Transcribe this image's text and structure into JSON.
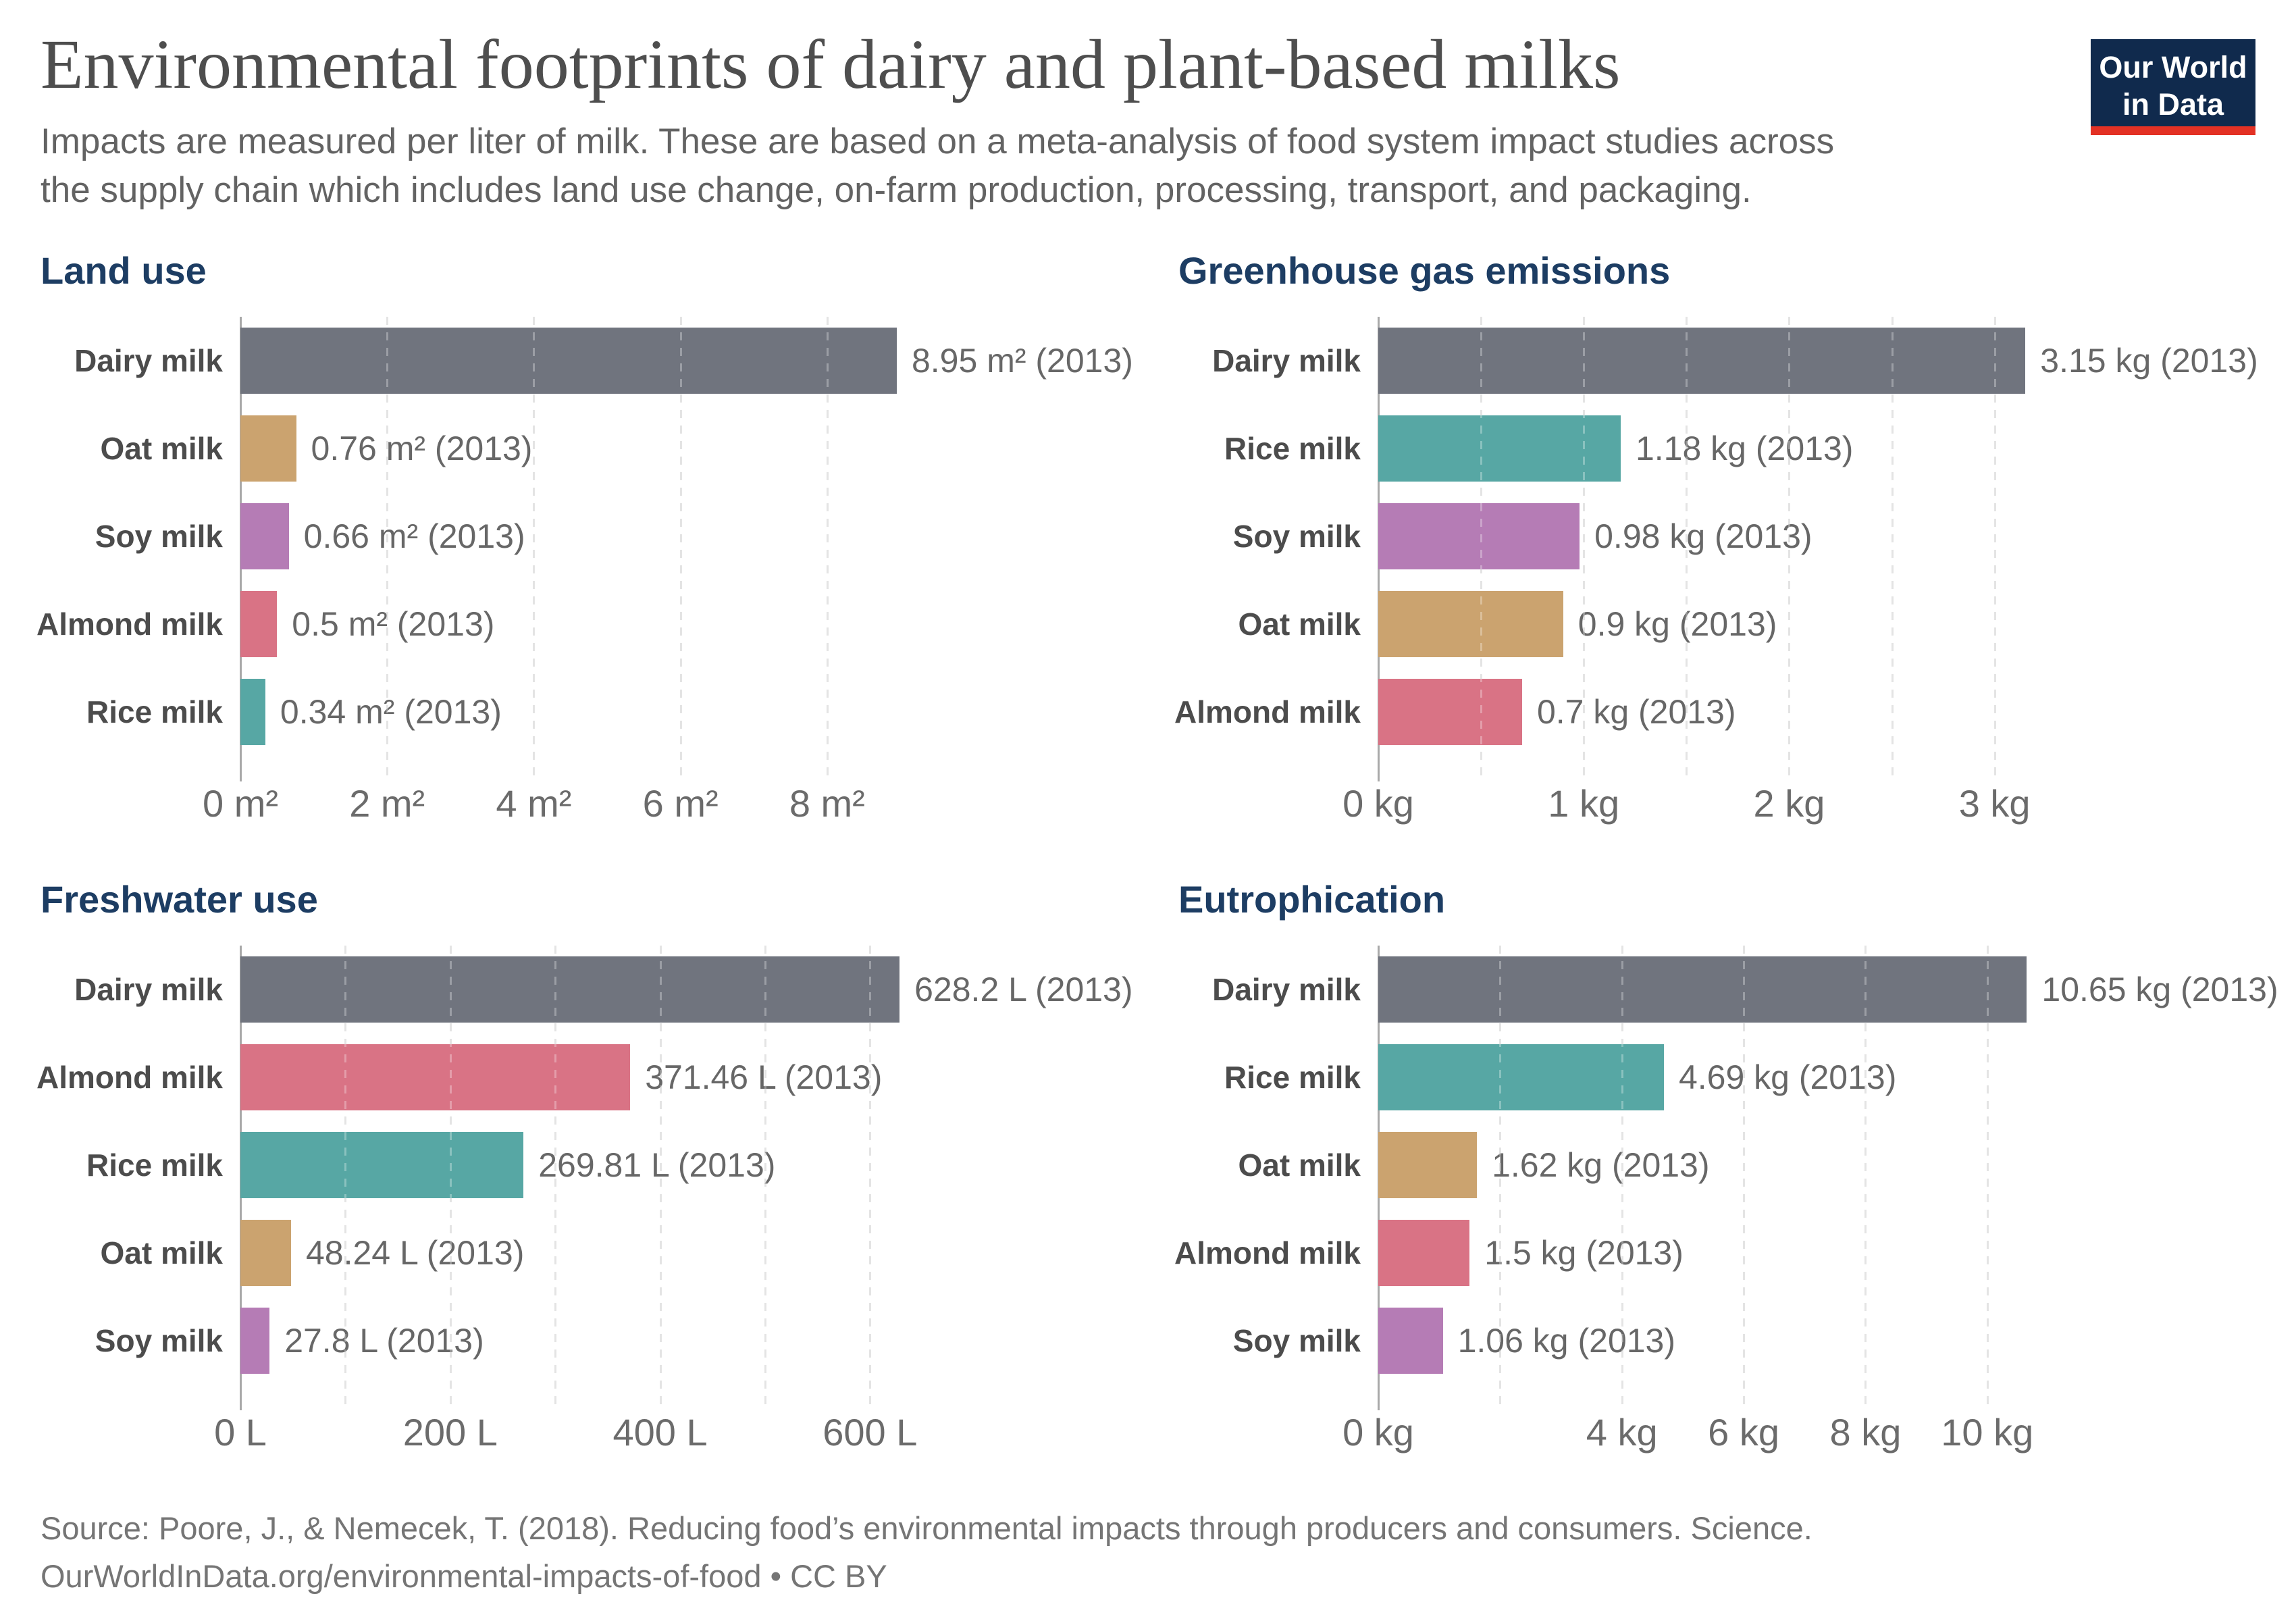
{
  "page": {
    "title": "Environmental footprints of dairy and plant-based milks",
    "subtitle_line1": "Impacts are measured per liter of milk. These are based on a meta-analysis of food system impact studies across",
    "subtitle_line2": "the supply chain which includes land use change, on-farm production, processing, transport, and packaging.",
    "logo": {
      "line1": "Our World",
      "line2": "in Data"
    },
    "footer_line1": "Source: Poore, J., & Nemecek, T. (2018). Reducing food’s environmental impacts through producers and consumers. Science.",
    "footer_line2": "OurWorldInData.org/environmental-impacts-of-food • CC BY"
  },
  "colors": {
    "accent_navy": "#1d3d63",
    "title_gray": "#4e4e4e",
    "logo_bg": "#102a4d",
    "logo_stripe": "#e33124",
    "axis": "#a9a9a9",
    "gridline": "#d8d8d8",
    "series": {
      "Dairy milk": "#70747e",
      "Oat milk": "#cba36f",
      "Soy milk": "#b57cb5",
      "Almond milk": "#d97385",
      "Rice milk": "#57a7a4"
    }
  },
  "chart_data": [
    {
      "type": "bar",
      "orientation": "horizontal",
      "title": "Land use",
      "unit": "m²",
      "year": 2013,
      "categories": [
        "Dairy milk",
        "Oat milk",
        "Soy milk",
        "Almond milk",
        "Rice milk"
      ],
      "values": [
        8.95,
        0.76,
        0.66,
        0.5,
        0.34
      ],
      "value_labels": [
        "8.95 m² (2013)",
        "0.76 m² (2013)",
        "0.66 m² (2013)",
        "0.5 m² (2013)",
        "0.34 m² (2013)"
      ],
      "axis_range": [
        0,
        9.3
      ],
      "axis_max": 9.3,
      "gridlines": [
        2,
        4,
        6,
        8
      ],
      "ticks": [
        {
          "v": 0,
          "label": "0 m²"
        },
        {
          "v": 2,
          "label": "2 m²"
        },
        {
          "v": 4,
          "label": "4 m²"
        },
        {
          "v": 6,
          "label": "6 m²"
        },
        {
          "v": 8,
          "label": "8 m²"
        }
      ],
      "grid": true,
      "legend": "none"
    },
    {
      "type": "bar",
      "orientation": "horizontal",
      "title": "Greenhouse gas emissions",
      "unit": "kg",
      "year": 2013,
      "categories": [
        "Dairy milk",
        "Rice milk",
        "Soy milk",
        "Oat milk",
        "Almond milk"
      ],
      "values": [
        3.15,
        1.18,
        0.98,
        0.9,
        0.7
      ],
      "value_labels": [
        "3.15 kg (2013)",
        "1.18 kg (2013)",
        "0.98 kg (2013)",
        "0.9 kg (2013)",
        "0.7 kg (2013)"
      ],
      "axis_range": [
        0,
        3.32
      ],
      "axis_max": 3.32,
      "gridlines": [
        0.5,
        1,
        1.5,
        2,
        2.5,
        3
      ],
      "ticks": [
        {
          "v": 0,
          "label": "0 kg"
        },
        {
          "v": 1,
          "label": "1 kg"
        },
        {
          "v": 2,
          "label": "2 kg"
        },
        {
          "v": 3,
          "label": "3 kg"
        }
      ],
      "grid": true,
      "legend": "none"
    },
    {
      "type": "bar",
      "orientation": "horizontal",
      "title": "Freshwater use",
      "unit": "L",
      "year": 2013,
      "categories": [
        "Dairy milk",
        "Almond milk",
        "Rice milk",
        "Oat milk",
        "Soy milk"
      ],
      "values": [
        628.2,
        371.46,
        269.81,
        48.24,
        27.8
      ],
      "value_labels": [
        "628.2 L (2013)",
        "371.46 L (2013)",
        "269.81 L (2013)",
        "48.24 L (2013)",
        "27.8 L (2013)"
      ],
      "axis_range": [
        0,
        650
      ],
      "axis_max": 650,
      "gridlines": [
        100,
        200,
        300,
        400,
        500,
        600
      ],
      "ticks": [
        {
          "v": 0,
          "label": "0 L"
        },
        {
          "v": 200,
          "label": "200 L"
        },
        {
          "v": 400,
          "label": "400 L"
        },
        {
          "v": 600,
          "label": "600 L"
        }
      ],
      "grid": true,
      "legend": "none"
    },
    {
      "type": "bar",
      "orientation": "horizontal",
      "title": "Eutrophication",
      "unit": "kg",
      "year": 2013,
      "categories": [
        "Dairy milk",
        "Rice milk",
        "Oat milk",
        "Almond milk",
        "Soy milk"
      ],
      "values": [
        10.65,
        4.69,
        1.62,
        1.5,
        1.06
      ],
      "value_labels": [
        "10.65 kg (2013)",
        "4.69 kg (2013)",
        "1.62 kg (2013)",
        "1.5 kg (2013)",
        "1.06 kg (2013)"
      ],
      "axis_range": [
        0,
        11.2
      ],
      "axis_max": 11.2,
      "gridlines": [
        2,
        4,
        6,
        8,
        10
      ],
      "ticks": [
        {
          "v": 0,
          "label": "0 kg"
        },
        {
          "v": 4,
          "label": "4 kg"
        },
        {
          "v": 6,
          "label": "6 kg"
        },
        {
          "v": 8,
          "label": "8 kg"
        },
        {
          "v": 10,
          "label": "10 kg"
        }
      ],
      "grid": true,
      "legend": "none"
    }
  ]
}
